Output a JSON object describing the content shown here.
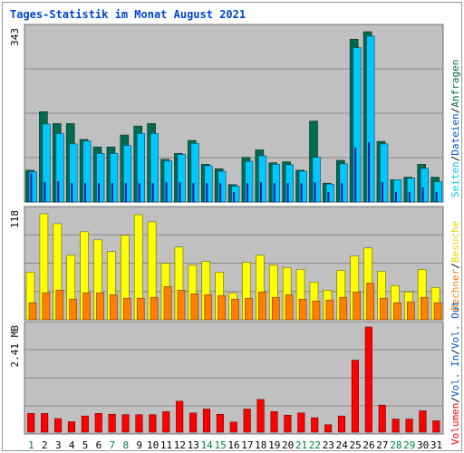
{
  "page": {
    "title": "Tages-Statistik im Monat August 2021"
  },
  "colors": {
    "panel_bg": "#c0c0c0",
    "grid": "#8a8a8a",
    "anfragen": "#006b4f",
    "dateien": "#00c8ff",
    "seiten": "#00c8ff",
    "besuche": "#ffff00",
    "rechner": "#ff8000",
    "volumen": "#ff0000",
    "weekend_label": "#008040",
    "weekday_label": "#008040"
  },
  "legend": {
    "anfragen": "Anfragen",
    "dateien": "Dateien",
    "seiten": "Seiten",
    "besuche": "Besuche",
    "rechner": "Rechner",
    "vol_out": "Vol. Out",
    "vol_in": "Vol. In",
    "volumen": "Volumen",
    "sep": "/"
  },
  "chart_data": [
    {
      "type": "bar",
      "title": "Anfragen / Dateien / Seiten",
      "ymax_label": "343",
      "ylim": [
        0,
        343
      ],
      "categories": [
        "1",
        "2",
        "3",
        "4",
        "5",
        "6",
        "7",
        "8",
        "9",
        "10",
        "11",
        "12",
        "13",
        "14",
        "15",
        "16",
        "17",
        "18",
        "19",
        "20",
        "21",
        "22",
        "23",
        "24",
        "25",
        "26",
        "27",
        "28",
        "29",
        "30",
        "31"
      ],
      "series": [
        {
          "name": "Anfragen",
          "values": [
            64,
            182,
            158,
            158,
            126,
            111,
            111,
            135,
            153,
            158,
            86,
            98,
            124,
            76,
            67,
            35,
            90,
            105,
            79,
            81,
            64,
            163,
            38,
            84,
            328,
            343,
            122,
            45,
            50,
            76,
            50
          ]
        },
        {
          "name": "Dateien",
          "values": [
            61,
            157,
            138,
            117,
            123,
            98,
            98,
            114,
            138,
            138,
            83,
            96,
            118,
            73,
            62,
            32,
            82,
            93,
            76,
            75,
            62,
            90,
            36,
            77,
            311,
            334,
            117,
            45,
            48,
            68,
            41
          ]
        },
        {
          "name": "Seiten",
          "values": [
            58,
            40,
            42,
            38,
            38,
            38,
            38,
            38,
            38,
            38,
            40,
            40,
            38,
            38,
            38,
            20,
            38,
            40,
            38,
            38,
            38,
            40,
            20,
            38,
            110,
            120,
            40,
            20,
            20,
            30,
            20
          ]
        }
      ]
    },
    {
      "type": "bar",
      "title": "Besuche / Rechner",
      "ymax_label": "118",
      "ylim": [
        0,
        118
      ],
      "categories": [
        "1",
        "2",
        "3",
        "4",
        "5",
        "6",
        "7",
        "8",
        "9",
        "10",
        "11",
        "12",
        "13",
        "14",
        "15",
        "16",
        "17",
        "18",
        "19",
        "20",
        "21",
        "22",
        "23",
        "24",
        "25",
        "26",
        "27",
        "28",
        "29",
        "30",
        "31"
      ],
      "series": [
        {
          "name": "Besuche",
          "values": [
            53,
            118,
            107,
            72,
            98,
            89,
            76,
            94,
            117,
            109,
            63,
            81,
            61,
            65,
            53,
            30,
            64,
            72,
            61,
            58,
            56,
            42,
            33,
            55,
            71,
            80,
            54,
            38,
            31,
            56,
            36
          ]
        },
        {
          "name": "Rechner",
          "values": [
            19,
            30,
            33,
            23,
            30,
            30,
            28,
            24,
            24,
            25,
            37,
            33,
            29,
            28,
            27,
            23,
            24,
            31,
            25,
            28,
            23,
            21,
            22,
            25,
            31,
            41,
            24,
            19,
            20,
            25,
            19
          ]
        }
      ]
    },
    {
      "type": "bar",
      "title": "Volumen",
      "ymax_label": "2.41 MB",
      "ylim": [
        0,
        2.41
      ],
      "categories": [
        "1",
        "2",
        "3",
        "4",
        "5",
        "6",
        "7",
        "8",
        "9",
        "10",
        "11",
        "12",
        "13",
        "14",
        "15",
        "16",
        "17",
        "18",
        "19",
        "20",
        "21",
        "22",
        "23",
        "24",
        "25",
        "26",
        "27",
        "28",
        "29",
        "30",
        "31"
      ],
      "series": [
        {
          "name": "Volumen",
          "values": [
            0.43,
            0.43,
            0.31,
            0.24,
            0.37,
            0.43,
            0.41,
            0.4,
            0.4,
            0.4,
            0.47,
            0.71,
            0.44,
            0.53,
            0.41,
            0.23,
            0.53,
            0.75,
            0.47,
            0.39,
            0.44,
            0.33,
            0.17,
            0.37,
            1.65,
            2.41,
            0.62,
            0.3,
            0.3,
            0.49,
            0.26
          ]
        }
      ]
    }
  ],
  "day_labels": [
    "1",
    "2",
    "3",
    "4",
    "5",
    "6",
    "7",
    "8",
    "9",
    "10",
    "11",
    "12",
    "13",
    "14",
    "15",
    "16",
    "17",
    "18",
    "19",
    "20",
    "21",
    "22",
    "23",
    "24",
    "25",
    "26",
    "27",
    "28",
    "29",
    "30",
    "31"
  ],
  "weekend_days": [
    1,
    7,
    8,
    14,
    15,
    21,
    22,
    28,
    29
  ]
}
